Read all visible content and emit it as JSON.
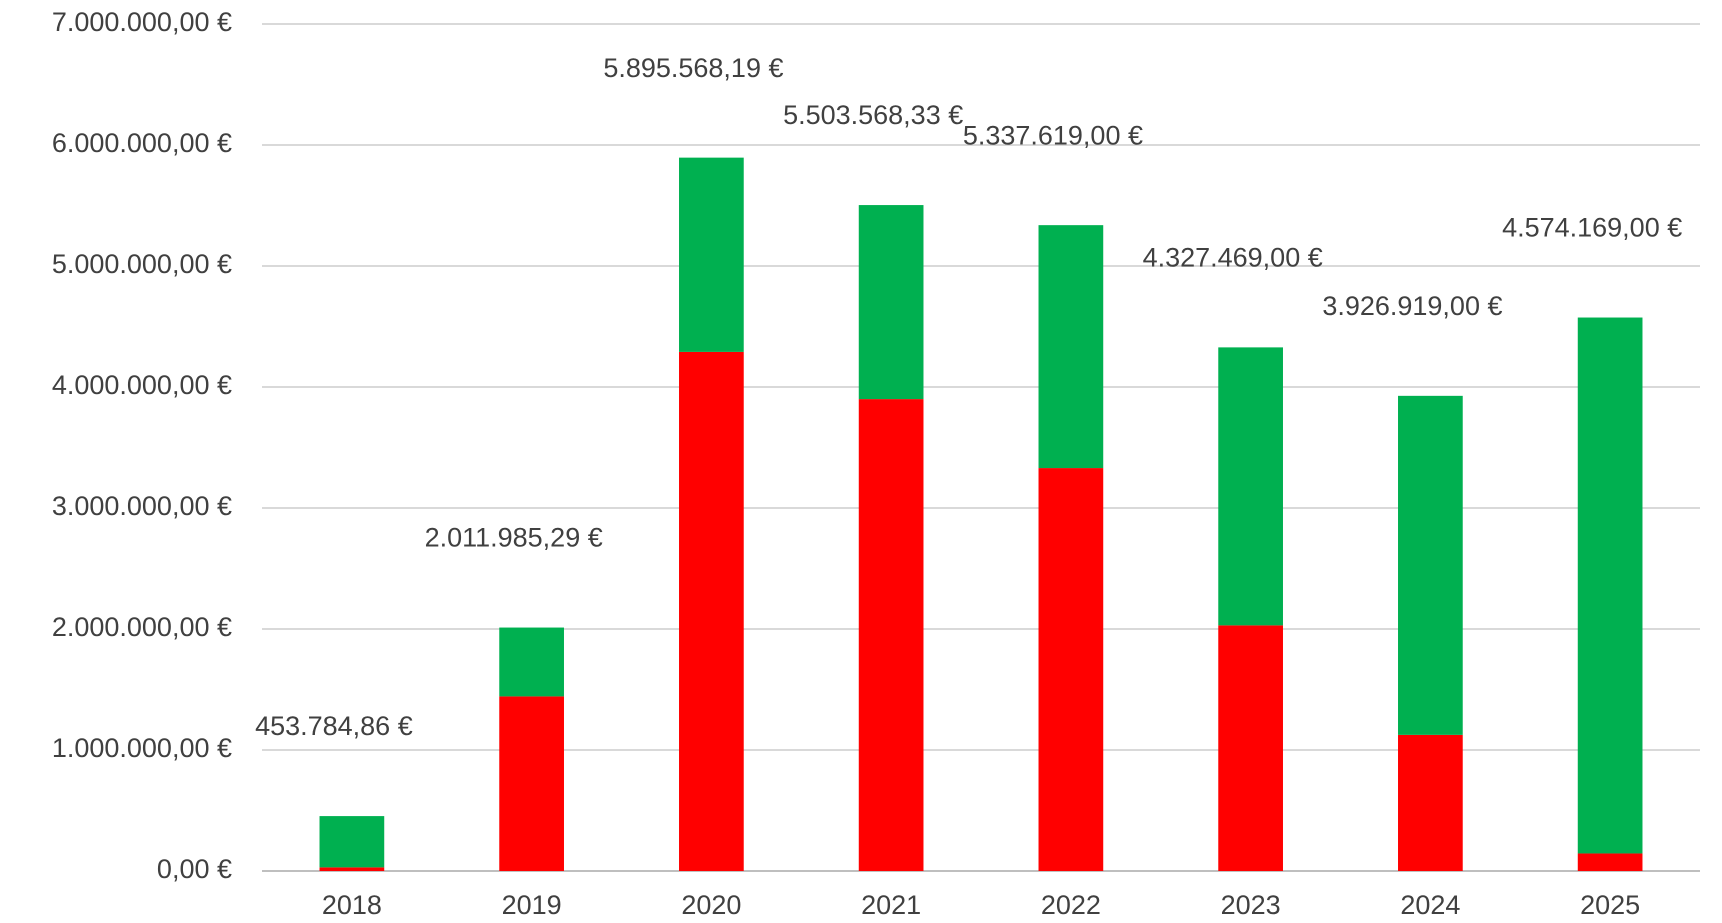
{
  "chart_data": {
    "type": "stacked_bar",
    "categories": [
      "2018",
      "2019",
      "2020",
      "2021",
      "2022",
      "2023",
      "2024",
      "2025"
    ],
    "series": [
      {
        "color": "#ff0000",
        "values": [
          30000,
          1443000,
          4290000,
          3900000,
          3330000,
          2030000,
          1125000,
          145000
        ]
      },
      {
        "color": "#00b050",
        "values": [
          423784.86,
          568985.29,
          1605568.19,
          1603568.33,
          2007619,
          2297469,
          2801919,
          4429169
        ]
      }
    ],
    "totals": [
      453784.86,
      2011985.29,
      5895568.19,
      5503568.33,
      5337619,
      4327469,
      3926919,
      4574169
    ],
    "total_labels": [
      "453.784,86 €",
      "2.011.985,29 €",
      "5.895.568,19 €",
      "5.503.568,33 €",
      "5.337.619,00 €",
      "4.327.469,00 €",
      "3.926.919,00 €",
      "4.574.169,00 €"
    ],
    "ylim": [
      0,
      7000000
    ],
    "yticks": [
      {
        "value": 0,
        "label": "0,00 €"
      },
      {
        "value": 1000000,
        "label": "1.000.000,00 €"
      },
      {
        "value": 2000000,
        "label": "2.000.000,00 €"
      },
      {
        "value": 3000000,
        "label": "3.000.000,00 €"
      },
      {
        "value": 4000000,
        "label": "4.000.000,00 €"
      },
      {
        "value": 5000000,
        "label": "5.000.000,00 €"
      },
      {
        "value": 6000000,
        "label": "6.000.000,00 €"
      },
      {
        "value": 7000000,
        "label": "7.000.000,00 €"
      }
    ],
    "grid": true
  }
}
